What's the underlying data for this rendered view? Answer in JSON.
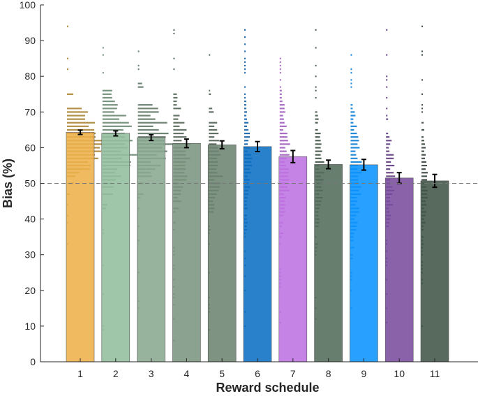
{
  "chart_data": {
    "type": "bar",
    "title": "",
    "xlabel": "Reward schedule",
    "ylabel": "Bias (%)",
    "ylim": [
      0,
      100
    ],
    "yticks": [
      0,
      10,
      20,
      30,
      40,
      50,
      60,
      70,
      80,
      90,
      100
    ],
    "categories": [
      "1",
      "2",
      "3",
      "4",
      "5",
      "6",
      "7",
      "8",
      "9",
      "10",
      "11"
    ],
    "values": [
      64.3,
      64.0,
      62.8,
      61.2,
      60.8,
      60.3,
      57.5,
      55.3,
      55.2,
      51.5,
      50.7
    ],
    "error": [
      0.6,
      0.7,
      0.8,
      1.2,
      1.1,
      1.4,
      1.7,
      1.2,
      1.5,
      1.5,
      1.8
    ],
    "reference_line": 50,
    "colors": [
      "#EDB04A",
      "#93BE9E",
      "#89A98F",
      "#7A9580",
      "#6D8472",
      "#0B6FC4",
      "#BE72E3",
      "#526B5A",
      "#0A93FF",
      "#7A4C9E",
      "#415548"
    ],
    "point_colors": [
      "#A88432",
      "#6A8A72",
      "#5E7765",
      "#536656",
      "#4E5F52",
      "#0B5FA8",
      "#9F5DBF",
      "#3F5245",
      "#0B7FD6",
      "#5E3A7D",
      "#33433A"
    ],
    "distributions": [
      {
        "range": [
          27,
          95
        ],
        "peak": 62,
        "spread": 7,
        "width": 54
      },
      {
        "range": [
          6,
          95
        ],
        "peak": 61,
        "spread": 9,
        "width": 48
      },
      {
        "range": [
          9,
          95
        ],
        "peak": 62,
        "spread": 8,
        "width": 46
      },
      {
        "range": [
          6,
          95
        ],
        "peak": 58,
        "spread": 10,
        "width": 22
      },
      {
        "range": [
          9,
          95
        ],
        "peak": 56,
        "spread": 10,
        "width": 18
      },
      {
        "range": [
          10,
          95
        ],
        "peak": 55,
        "spread": 12,
        "width": 10
      },
      {
        "range": [
          10,
          93
        ],
        "peak": 55,
        "spread": 13,
        "width": 14
      },
      {
        "range": [
          7,
          95
        ],
        "peak": 52,
        "spread": 12,
        "width": 12
      },
      {
        "range": [
          13,
          89
        ],
        "peak": 52,
        "spread": 13,
        "width": 14
      },
      {
        "range": [
          8,
          93
        ],
        "peak": 52,
        "spread": 10,
        "width": 12
      },
      {
        "range": [
          7,
          94
        ],
        "peak": 50,
        "spread": 12,
        "width": 8
      }
    ]
  }
}
